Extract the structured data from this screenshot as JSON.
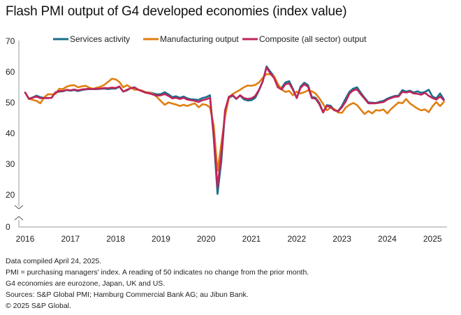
{
  "chart_data": {
    "type": "line",
    "title": "Flash PMI output of G4 developed economies (index value)",
    "xlabel": "",
    "ylabel": "",
    "ylim": [
      0,
      70
    ],
    "axis_break": [
      0,
      15
    ],
    "yticks": [
      0,
      20,
      30,
      40,
      50,
      60,
      70
    ],
    "xtick_labels": [
      "2016",
      "2017",
      "2018",
      "2019",
      "2020",
      "2021",
      "2022",
      "2023",
      "2024",
      "2025"
    ],
    "x_start": "2016-01",
    "x_frequency": "monthly",
    "grid": false,
    "legend_position": "top",
    "series": [
      {
        "name": "Services activity",
        "color": "#1a6e8a",
        "values": [
          53.3,
          51.3,
          51.7,
          52.3,
          51.8,
          51.6,
          51.5,
          51.6,
          53.3,
          53.6,
          53.7,
          54.1,
          53.9,
          54.1,
          53.8,
          54.1,
          54.3,
          54.4,
          54.4,
          54.4,
          54.5,
          54.6,
          54.4,
          54.6,
          54.6,
          55.2,
          53.6,
          54.0,
          54.8,
          55.0,
          54.2,
          53.9,
          53.4,
          53.3,
          53.0,
          52.7,
          52.8,
          53.4,
          52.7,
          51.8,
          52.1,
          51.6,
          52.0,
          51.4,
          51.1,
          51.0,
          50.9,
          51.5,
          51.8,
          52.4,
          38.5,
          20.3,
          30.8,
          47.0,
          51.5,
          52.3,
          51.2,
          52.3,
          51.1,
          50.7,
          50.8,
          51.6,
          54.0,
          56.9,
          61.8,
          60.1,
          58.5,
          55.1,
          54.8,
          56.6,
          57.0,
          54.5,
          51.5,
          55.2,
          56.5,
          55.7,
          51.9,
          51.6,
          49.9,
          46.9,
          49.2,
          49.0,
          47.6,
          47.3,
          49.0,
          51.4,
          53.6,
          54.6,
          55.0,
          53.2,
          51.6,
          50.1,
          50.0,
          49.9,
          50.3,
          50.6,
          51.3,
          51.8,
          52.2,
          52.3,
          54.1,
          53.6,
          53.9,
          53.3,
          53.7,
          53.2,
          53.5,
          54.2,
          52.0,
          51.4,
          53.0,
          51.1
        ]
      },
      {
        "name": "Manufacturing output",
        "color": "#e07f10",
        "values": [
          53.3,
          51.3,
          50.9,
          50.6,
          49.8,
          51.6,
          52.7,
          52.7,
          52.8,
          54.5,
          54.4,
          55.2,
          55.6,
          55.7,
          55.0,
          55.3,
          55.5,
          54.9,
          54.5,
          54.9,
          55.2,
          55.8,
          56.8,
          57.8,
          57.6,
          56.7,
          55.0,
          55.7,
          54.9,
          54.2,
          54.2,
          53.9,
          53.3,
          53.3,
          52.7,
          51.8,
          50.5,
          49.3,
          50.1,
          49.7,
          49.4,
          48.9,
          49.3,
          48.9,
          49.4,
          49.8,
          48.5,
          49.5,
          49.3,
          48.5,
          42.5,
          27.8,
          36.5,
          45.5,
          51.6,
          52.8,
          53.5,
          54.2,
          55.0,
          55.6,
          55.5,
          55.8,
          56.6,
          58.1,
          59.3,
          59.2,
          58.6,
          56.1,
          54.3,
          53.5,
          53.8,
          52.4,
          53.6,
          53.0,
          53.4,
          54.0,
          53.7,
          53.0,
          51.4,
          49.6,
          47.5,
          48.4,
          47.9,
          46.8,
          46.7,
          48.4,
          49.3,
          49.9,
          49.2,
          47.7,
          46.3,
          47.3,
          46.5,
          47.6,
          47.4,
          47.8,
          46.5,
          47.9,
          49.0,
          50.1,
          49.8,
          51.2,
          49.8,
          48.9,
          48.1,
          47.5,
          47.8,
          46.9,
          48.8,
          50.2,
          48.9,
          50.2
        ]
      },
      {
        "name": "Composite (all sector) output",
        "color": "#c0245a",
        "values": [
          53.3,
          51.2,
          51.6,
          52.0,
          51.5,
          51.5,
          51.5,
          51.6,
          53.3,
          53.8,
          53.8,
          54.2,
          54.0,
          54.3,
          54.0,
          54.3,
          54.4,
          54.5,
          54.4,
          54.5,
          54.6,
          54.8,
          54.7,
          54.9,
          54.8,
          55.3,
          53.6,
          54.2,
          54.7,
          54.9,
          54.2,
          53.7,
          53.2,
          53.0,
          52.6,
          52.3,
          52.4,
          52.8,
          52.2,
          51.4,
          51.6,
          51.2,
          51.6,
          51.0,
          50.8,
          50.6,
          50.2,
          50.8,
          51.1,
          51.6,
          39.5,
          22.5,
          33.0,
          47.5,
          51.9,
          52.5,
          51.3,
          52.4,
          51.5,
          51.2,
          51.4,
          52.2,
          54.2,
          57.0,
          61.5,
          59.5,
          58.0,
          55.0,
          54.3,
          56.0,
          56.3,
          54.2,
          51.5,
          54.8,
          56.0,
          55.2,
          51.5,
          51.3,
          49.5,
          46.8,
          49.0,
          48.5,
          47.5,
          47.2,
          48.5,
          50.4,
          53.0,
          54.0,
          54.3,
          52.7,
          51.3,
          49.8,
          49.8,
          49.8,
          50.0,
          50.2,
          51.0,
          51.5,
          51.9,
          52.0,
          53.5,
          53.3,
          53.6,
          53.0,
          52.9,
          52.6,
          53.2,
          52.2,
          51.5,
          51.0,
          52.0,
          50.8
        ]
      }
    ]
  },
  "notes": [
    "Data compiled April 24, 2025.",
    "PMI = purchasing managers' index. A reading of 50 indicates no change from the prior month.",
    "G4 economies are eurozone, Japan, UK and US.",
    "Sources: S&P Global PMI; Hamburg Commercial Bank AG; au Jibun Bank.",
    "© 2025 S&P Global."
  ]
}
